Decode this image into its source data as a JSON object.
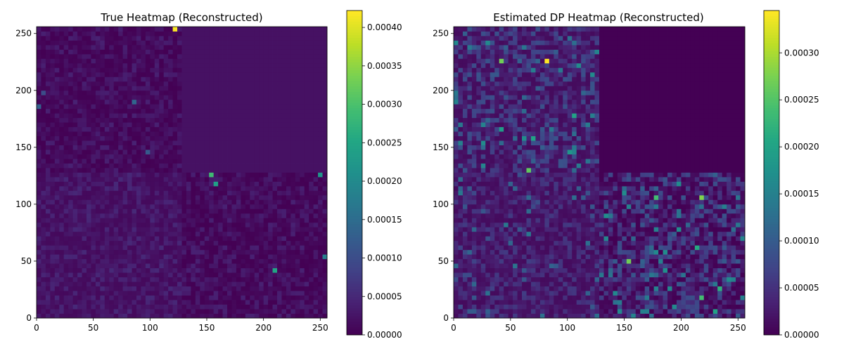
{
  "chart_data": [
    {
      "type": "heatmap",
      "title": "True Heatmap (Reconstructed)",
      "xlabel": "",
      "ylabel": "",
      "xlim": [
        0,
        256
      ],
      "ylim": [
        0,
        256
      ],
      "x_ticks": [
        0,
        50,
        100,
        150,
        200,
        250
      ],
      "y_ticks": [
        0,
        50,
        100,
        150,
        200,
        250
      ],
      "colormap": "viridis",
      "grid": false,
      "colorbar": {
        "range": [
          0,
          0.000422
        ],
        "ticks": [
          0,
          5e-05,
          0.0001,
          0.00015,
          0.0002,
          0.00025,
          0.0003,
          0.00035,
          0.0004
        ],
        "tick_labels": [
          "0.00000",
          "0.00005",
          "0.00010",
          "0.00015",
          "0.00020",
          "0.00025",
          "0.00030",
          "0.00035",
          "0.00040"
        ]
      },
      "structure": {
        "grid_size": 64,
        "quadrants": {
          "upper_right": {
            "x_range": [
              128,
              256
            ],
            "y_range": [
              128,
              256
            ],
            "value": 2e-05
          },
          "upper_left": {
            "x_range": [
              0,
              128
            ],
            "y_range": [
              128,
              256
            ],
            "base_range": [
              0.0,
              4e-05
            ]
          },
          "lower_left": {
            "x_range": [
              0,
              128
            ],
            "y_range": [
              0,
              128
            ],
            "base_range": [
              1e-05,
              5e-05
            ]
          },
          "lower_right": {
            "x_range": [
              128,
              256
            ],
            "y_range": [
              0,
              128
            ],
            "base_range": [
              0.0,
              4e-05
            ]
          }
        },
        "highlights": [
          {
            "x": 122,
            "y": 253,
            "value": 0.00042
          },
          {
            "x": 154,
            "y": 125,
            "value": 0.00029
          },
          {
            "x": 158,
            "y": 119,
            "value": 0.00024
          },
          {
            "x": 250,
            "y": 125,
            "value": 0.00022
          },
          {
            "x": 210,
            "y": 42,
            "value": 0.00025
          },
          {
            "x": 254,
            "y": 54,
            "value": 0.00018
          },
          {
            "x": 86,
            "y": 189,
            "value": 0.00014
          },
          {
            "x": 2,
            "y": 185,
            "value": 0.00013
          },
          {
            "x": 98,
            "y": 146,
            "value": 0.00012
          },
          {
            "x": 6,
            "y": 197,
            "value": 0.0001
          }
        ]
      }
    },
    {
      "type": "heatmap",
      "title": "Estimated DP Heatmap (Reconstructed)",
      "xlabel": "",
      "ylabel": "",
      "xlim": [
        0,
        256
      ],
      "ylim": [
        0,
        256
      ],
      "x_ticks": [
        0,
        50,
        100,
        150,
        200,
        250
      ],
      "y_ticks": [
        0,
        50,
        100,
        150,
        200,
        250
      ],
      "colormap": "viridis",
      "grid": false,
      "colorbar": {
        "range": [
          0,
          0.000345
        ],
        "ticks": [
          0,
          5e-05,
          0.0001,
          0.00015,
          0.0002,
          0.00025,
          0.0003
        ],
        "tick_labels": [
          "0.00000",
          "0.00005",
          "0.00010",
          "0.00015",
          "0.00020",
          "0.00025",
          "0.00030"
        ]
      },
      "structure": {
        "grid_size": 64,
        "quadrants": {
          "upper_right": {
            "x_range": [
              128,
              256
            ],
            "y_range": [
              128,
              256
            ],
            "value": 0.0
          },
          "upper_left": {
            "x_range": [
              0,
              128
            ],
            "y_range": [
              128,
              256
            ],
            "base_range": [
              1e-05,
              9e-05
            ]
          },
          "lower_left": {
            "x_range": [
              0,
              128
            ],
            "y_range": [
              0,
              128
            ],
            "base_range": [
              1e-05,
              6e-05
            ]
          },
          "lower_right": {
            "x_range": [
              128,
              256
            ],
            "y_range": [
              0,
              128
            ],
            "base_range": [
              0.0,
              9e-05
            ]
          }
        },
        "highlights": [
          {
            "x": 82,
            "y": 225,
            "value": 0.000345
          },
          {
            "x": 42,
            "y": 225,
            "value": 0.00027
          },
          {
            "x": 218,
            "y": 105,
            "value": 0.00028
          },
          {
            "x": 178,
            "y": 105,
            "value": 0.00024
          },
          {
            "x": 154,
            "y": 50,
            "value": 0.00027
          },
          {
            "x": 66,
            "y": 130,
            "value": 0.00026
          },
          {
            "x": 218,
            "y": 18,
            "value": 0.00024
          },
          {
            "x": 234,
            "y": 26,
            "value": 0.00022
          },
          {
            "x": 214,
            "y": 62,
            "value": 0.00021
          },
          {
            "x": 106,
            "y": 177,
            "value": 0.0002
          },
          {
            "x": 70,
            "y": 157,
            "value": 0.0002
          },
          {
            "x": 42,
            "y": 165,
            "value": 0.00019
          },
          {
            "x": 102,
            "y": 145,
            "value": 0.00018
          },
          {
            "x": 230,
            "y": 6,
            "value": 0.0002
          },
          {
            "x": 186,
            "y": 42,
            "value": 0.00017
          }
        ]
      }
    }
  ]
}
